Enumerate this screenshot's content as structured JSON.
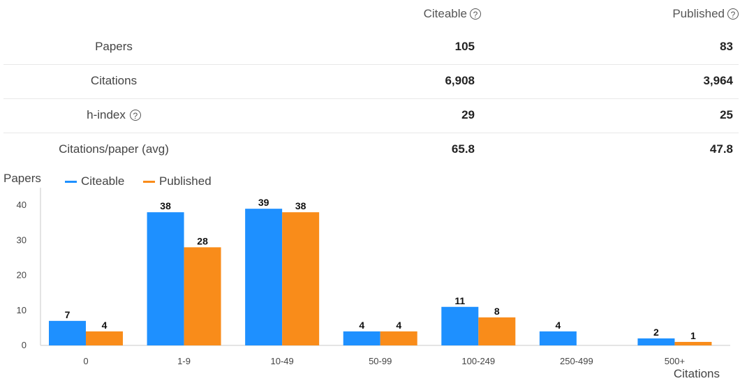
{
  "stats": {
    "columns": [
      {
        "label": "Citeable",
        "icon": "help-circle-icon"
      },
      {
        "label": "Published",
        "icon": "help-circle-icon"
      }
    ],
    "rows": [
      {
        "label": "Papers",
        "has_help": false,
        "citeable": "105",
        "published": "83"
      },
      {
        "label": "Citations",
        "has_help": false,
        "citeable": "6,908",
        "published": "3,964"
      },
      {
        "label": "h-index",
        "has_help": true,
        "citeable": "29",
        "published": "25"
      },
      {
        "label": "Citations/paper (avg)",
        "has_help": false,
        "citeable": "65.8",
        "published": "47.8"
      }
    ]
  },
  "chart_data": {
    "type": "bar",
    "ylabel": "Papers",
    "xlabel": "Citations",
    "categories": [
      "0",
      "1-9",
      "10-49",
      "50-99",
      "100-249",
      "250-499",
      "500+"
    ],
    "series": [
      {
        "name": "Citeable",
        "color": "#1e90ff",
        "values": [
          7,
          38,
          39,
          4,
          11,
          4,
          2
        ]
      },
      {
        "name": "Published",
        "color": "#f98c1a",
        "values": [
          4,
          28,
          38,
          4,
          8,
          0,
          1
        ]
      }
    ],
    "ylim": [
      0,
      45
    ],
    "yticks": [
      0,
      10,
      20,
      30,
      40
    ],
    "grid": false,
    "legend": "top-left"
  }
}
